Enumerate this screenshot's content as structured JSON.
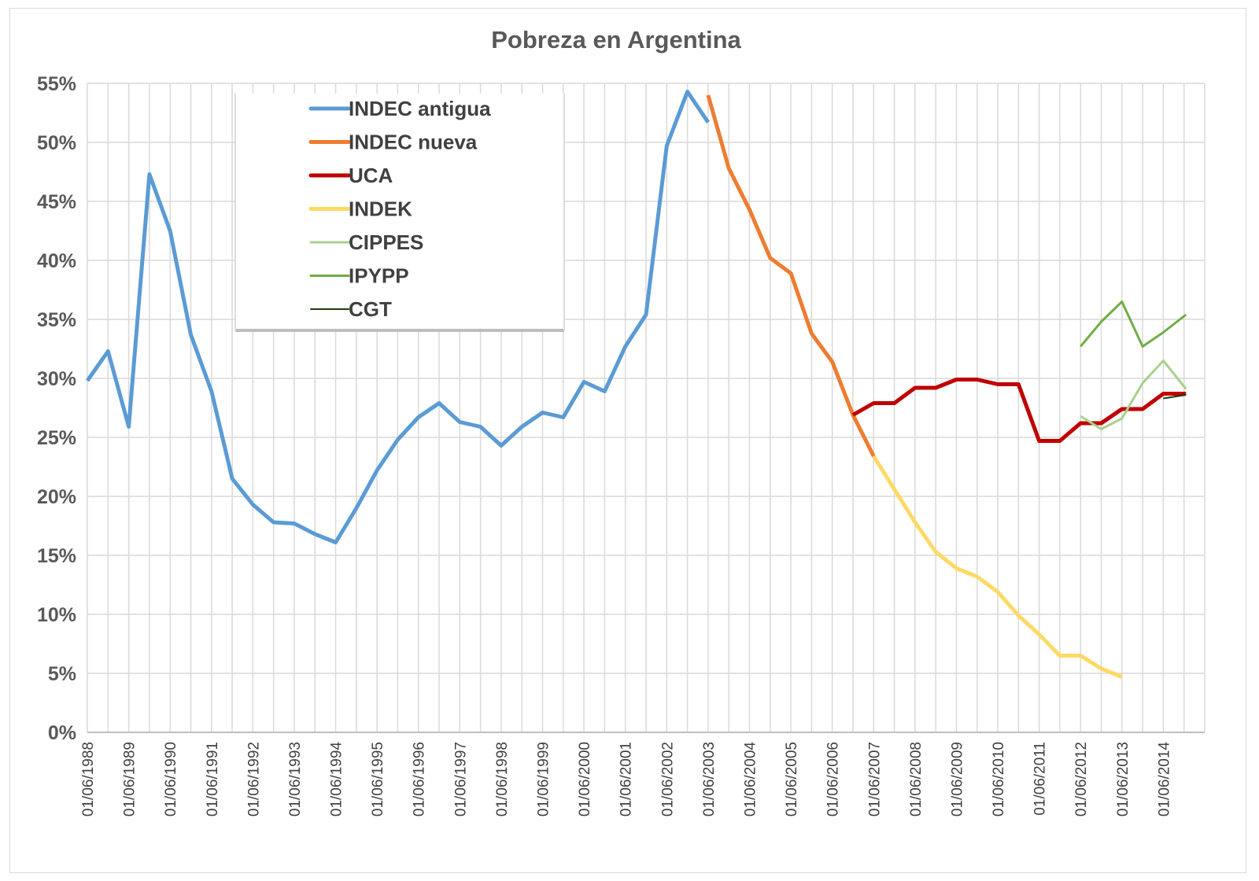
{
  "chart_data": {
    "type": "line",
    "title": "Pobreza en Argentina",
    "xlabel": "",
    "ylabel": "",
    "ylim": [
      0,
      55
    ],
    "yticks": [
      "0%",
      "5%",
      "10%",
      "15%",
      "20%",
      "25%",
      "30%",
      "35%",
      "40%",
      "45%",
      "50%",
      "55%"
    ],
    "x_range": [
      1988.0,
      2015.0
    ],
    "categories": [
      "01/06/1988",
      "01/06/1989",
      "01/06/1990",
      "01/06/1991",
      "01/06/1992",
      "01/06/1993",
      "01/06/1994",
      "01/06/1995",
      "01/06/1996",
      "01/06/1997",
      "01/06/1998",
      "01/06/1999",
      "01/06/2000",
      "01/06/2001",
      "01/06/2002",
      "01/06/2003",
      "01/06/2004",
      "01/06/2005",
      "01/06/2006",
      "01/06/2007",
      "01/06/2008",
      "01/06/2009",
      "01/06/2010",
      "01/06/2011",
      "01/06/2012",
      "01/06/2013",
      "01/06/2014"
    ],
    "grid": true,
    "legend_position": "top-left",
    "series": [
      {
        "name": "INDEC antigua",
        "color": "#5b9bd5",
        "width": 5,
        "x": [
          1988.0,
          1988.5,
          1989.0,
          1989.5,
          1990.0,
          1990.5,
          1991.0,
          1991.5,
          1992.0,
          1992.5,
          1993.0,
          1993.5,
          1994.0,
          1994.5,
          1995.0,
          1995.5,
          1996.0,
          1996.5,
          1997.0,
          1997.5,
          1998.0,
          1998.5,
          1999.0,
          1999.5,
          2000.0,
          2000.5,
          2001.0,
          2001.5,
          2002.0,
          2002.5,
          2003.0
        ],
        "y": [
          29.8,
          32.3,
          25.9,
          47.3,
          42.5,
          33.7,
          28.9,
          21.5,
          19.3,
          17.8,
          17.7,
          16.8,
          16.1,
          19.0,
          22.2,
          24.8,
          26.7,
          27.9,
          26.3,
          25.9,
          24.3,
          25.9,
          27.1,
          26.7,
          29.7,
          28.9,
          32.7,
          35.4,
          49.7,
          54.3,
          51.7
        ]
      },
      {
        "name": "INDEC nueva",
        "color": "#ed7d31",
        "width": 5,
        "x": [
          2003.0,
          2003.5,
          2004.0,
          2004.5,
          2005.0,
          2005.5,
          2006.0,
          2006.5,
          2007.0
        ],
        "y": [
          54.0,
          47.8,
          44.3,
          40.2,
          38.9,
          33.8,
          31.4,
          26.9,
          23.4
        ]
      },
      {
        "name": "UCA",
        "color": "#c00000",
        "width": 5,
        "x": [
          2006.5,
          2007.0,
          2007.5,
          2008.0,
          2008.5,
          2009.0,
          2009.5,
          2010.0,
          2010.5,
          2011.0,
          2011.5,
          2012.0,
          2012.5,
          2013.0,
          2013.5,
          2014.0,
          2014.55
        ],
        "y": [
          26.9,
          27.9,
          27.9,
          29.2,
          29.2,
          29.9,
          29.9,
          29.5,
          29.5,
          24.7,
          24.7,
          26.2,
          26.2,
          27.4,
          27.4,
          28.7,
          28.7
        ]
      },
      {
        "name": "INDEK",
        "color": "#ffd966",
        "width": 5,
        "x": [
          2007.0,
          2007.5,
          2008.0,
          2008.5,
          2009.0,
          2009.5,
          2010.0,
          2010.5,
          2011.0,
          2011.5,
          2012.0,
          2012.5,
          2013.0
        ],
        "y": [
          23.4,
          20.6,
          17.8,
          15.3,
          13.9,
          13.2,
          11.9,
          9.9,
          8.3,
          6.5,
          6.5,
          5.4,
          4.7
        ]
      },
      {
        "name": "CIPPES",
        "color": "#a9d18e",
        "width": 3,
        "x": [
          2012.0,
          2012.5,
          2013.0,
          2013.5,
          2014.0,
          2014.55
        ],
        "y": [
          26.8,
          25.7,
          26.6,
          29.6,
          31.5,
          29.1
        ]
      },
      {
        "name": "IPYPP",
        "color": "#70ad47",
        "width": 3,
        "x": [
          2012.0,
          2012.5,
          2013.0,
          2013.5,
          2014.0,
          2014.55
        ],
        "y": [
          32.7,
          34.8,
          36.5,
          32.7,
          33.9,
          35.4
        ]
      },
      {
        "name": "CGT",
        "color": "#1e3a0f",
        "width": 2,
        "x": [
          2014.0,
          2014.55
        ],
        "y": [
          28.3,
          28.6
        ]
      }
    ]
  }
}
